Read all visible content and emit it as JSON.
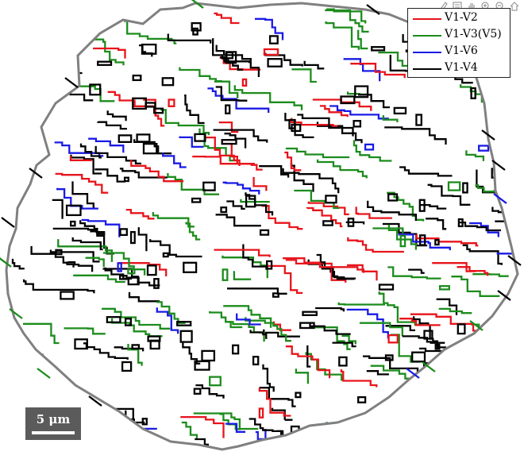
{
  "legend": [
    {
      "label": "V1-V2",
      "color": "#e8141b"
    },
    {
      "label": "V1-V3(V5)",
      "color": "#1c8c1c"
    },
    {
      "label": "V1-V6",
      "color": "#1a1ae6"
    },
    {
      "label": "V1-V4",
      "color": "#000000"
    }
  ],
  "boundary_color": "#808080",
  "scale_bar": {
    "label": "5 μm"
  },
  "toolbar": [
    {
      "name": "brush-icon"
    },
    {
      "name": "data-cursor-icon"
    },
    {
      "name": "pan-hand-icon"
    },
    {
      "name": "zoom-in-icon"
    },
    {
      "name": "zoom-out-icon"
    },
    {
      "name": "home-icon"
    }
  ]
}
